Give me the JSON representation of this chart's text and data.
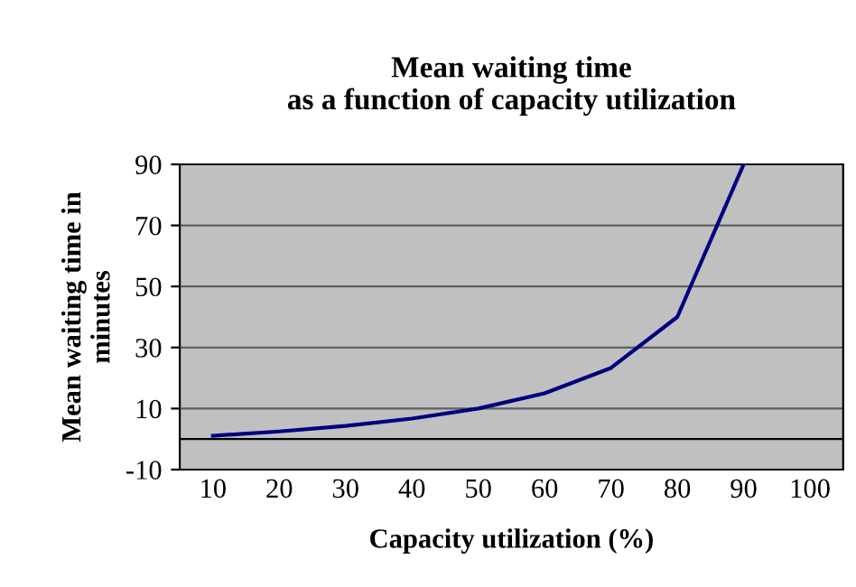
{
  "chart_data": {
    "type": "line",
    "title": "Mean waiting time\nas a function of capacity utilization",
    "xlabel": "Capacity utilization (%)",
    "ylabel": "Mean waiting time in\nminutes",
    "categories": [
      "10",
      "20",
      "30",
      "40",
      "50",
      "60",
      "70",
      "80",
      "90",
      "100"
    ],
    "series": [
      {
        "color": "#000080",
        "values": [
          1.1,
          2.5,
          4.3,
          6.7,
          10,
          15,
          23.3,
          40,
          90,
          null
        ]
      }
    ],
    "ylim": [
      -10,
      90
    ],
    "yticks": [
      -10,
      10,
      30,
      50,
      70,
      90
    ],
    "grid": "y",
    "marker": "none",
    "line_style": "solid",
    "ref_lines": [
      {
        "axis": "y",
        "value": 0,
        "color": "#000000"
      }
    ]
  }
}
